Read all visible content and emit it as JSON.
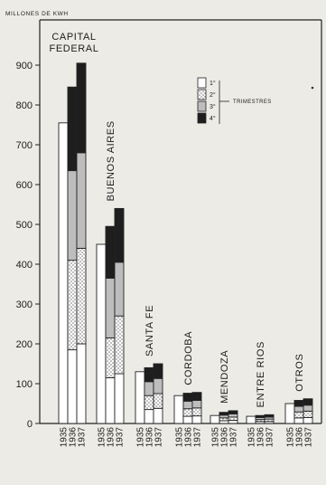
{
  "chart_data": {
    "type": "bar",
    "stacked": true,
    "unit_label": "MILLONES DE KWH",
    "ylim": [
      0,
      900
    ],
    "yticks": [
      0,
      100,
      200,
      300,
      400,
      500,
      600,
      700,
      800,
      900
    ],
    "legend_title": "TRIMESTRES",
    "legend_position": "top-right",
    "series": [
      {
        "name": "1°",
        "color": "#ffffff",
        "pattern": "plain"
      },
      {
        "name": "2°",
        "color": "#ffffff",
        "pattern": "dots"
      },
      {
        "name": "3°",
        "color": "#bdbdbd",
        "pattern": "grey"
      },
      {
        "name": "4°",
        "color": "#1e1e1e",
        "pattern": "black"
      }
    ],
    "groups": [
      {
        "name": "CAPITAL FEDERAL",
        "name_lines": [
          "CAPITAL",
          "FEDERAL"
        ],
        "label_orientation": "horizontal",
        "bars": [
          {
            "year": "1935",
            "total": 755,
            "quarters": null
          },
          {
            "year": "1936",
            "total": 845,
            "quarters": [
              185,
              225,
              225,
              210
            ]
          },
          {
            "year": "1937",
            "total": 905,
            "quarters": [
              200,
              240,
              240,
              225
            ]
          }
        ]
      },
      {
        "name": "BUENOS AIRES",
        "label_orientation": "vertical",
        "bars": [
          {
            "year": "1935",
            "total": 450,
            "quarters": null
          },
          {
            "year": "1936",
            "total": 495,
            "quarters": [
              115,
              100,
              150,
              130
            ]
          },
          {
            "year": "1937",
            "total": 540,
            "quarters": [
              125,
              145,
              135,
              135
            ]
          }
        ]
      },
      {
        "name": "SANTA FE",
        "label_orientation": "vertical",
        "bars": [
          {
            "year": "1935",
            "total": 130,
            "quarters": null
          },
          {
            "year": "1936",
            "total": 140,
            "quarters": [
              35,
              35,
              35,
              35
            ]
          },
          {
            "year": "1937",
            "total": 150,
            "quarters": [
              38,
              37,
              38,
              37
            ]
          }
        ]
      },
      {
        "name": "CORDOBA",
        "label_orientation": "vertical",
        "bars": [
          {
            "year": "1935",
            "total": 70,
            "quarters": null
          },
          {
            "year": "1936",
            "total": 76,
            "quarters": [
              18,
              19,
              19,
              20
            ]
          },
          {
            "year": "1937",
            "total": 78,
            "quarters": [
              19,
              20,
              19,
              20
            ]
          }
        ]
      },
      {
        "name": "MENDOZA",
        "label_orientation": "vertical",
        "bars": [
          {
            "year": "1935",
            "total": 20,
            "quarters": null
          },
          {
            "year": "1936",
            "total": 28,
            "quarters": [
              7,
              7,
              7,
              7
            ]
          },
          {
            "year": "1937",
            "total": 32,
            "quarters": [
              8,
              8,
              8,
              8
            ]
          }
        ]
      },
      {
        "name": "ENTRE RIOS",
        "label_orientation": "vertical",
        "bars": [
          {
            "year": "1935",
            "total": 18,
            "quarters": null
          },
          {
            "year": "1936",
            "total": 20,
            "quarters": [
              5,
              5,
              5,
              5
            ]
          },
          {
            "year": "1937",
            "total": 22,
            "quarters": [
              5,
              6,
              5,
              6
            ]
          }
        ]
      },
      {
        "name": "OTROS",
        "label_orientation": "vertical",
        "bars": [
          {
            "year": "1935",
            "total": 50,
            "quarters": null
          },
          {
            "year": "1936",
            "total": 58,
            "quarters": [
              14,
              15,
              14,
              15
            ]
          },
          {
            "year": "1937",
            "total": 62,
            "quarters": [
              15,
              16,
              15,
              16
            ]
          }
        ]
      }
    ]
  }
}
